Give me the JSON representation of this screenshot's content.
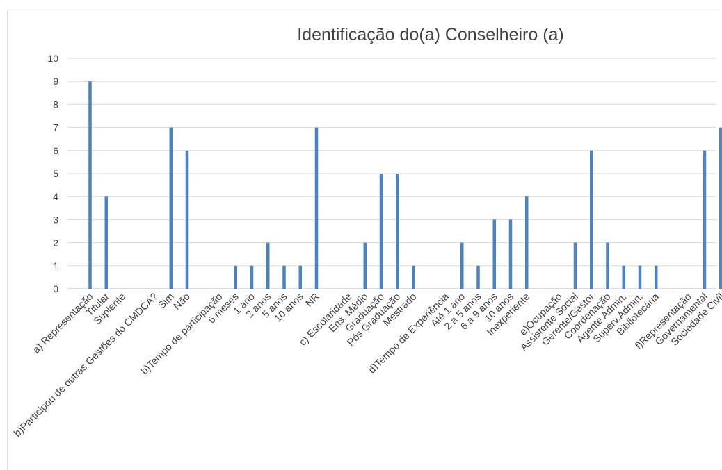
{
  "chart_data": {
    "type": "bar",
    "title": "Identificação do(a) Conselheiro (a)",
    "xlabel": "",
    "ylabel": "",
    "ylim": [
      0,
      10
    ],
    "yticks": [
      "0",
      "1",
      "2",
      "3",
      "4",
      "5",
      "6",
      "7",
      "8",
      "9",
      "10"
    ],
    "grid": true,
    "legend": "none",
    "bar_color": "#4f81bd",
    "categories": [
      "a) Representação",
      "Titular",
      "Suplente",
      "",
      "b)Participou de outras Gestões do CMDCA?",
      "Sim",
      "Não",
      "",
      "b)Tempo de participação",
      "6 meses",
      "1 ano",
      "2 anos",
      "5 anos",
      "10 anos",
      "NR",
      "",
      "c) Escolaridade",
      "Ens. Médio",
      "Graduação",
      "Pós Graduação",
      "Mestrado",
      "",
      "d)Tempo de Experiência",
      "Até 1 ano",
      "2 a 5 anos",
      "6 a 9 anos",
      "10 anos",
      "Inexperiente",
      "",
      "e)Ocupação",
      "Assistente Social",
      "Gerente/Gestor",
      "Coordenação",
      "Agente Admin.",
      "Superv.Admin.",
      "Bibliotecária",
      "",
      "f)Representação",
      "Governamental",
      "Sociedade Civil"
    ],
    "values": [
      9,
      4,
      0,
      0,
      0,
      7,
      6,
      0,
      0,
      1,
      1,
      2,
      1,
      1,
      7,
      0,
      0,
      2,
      5,
      5,
      1,
      0,
      0,
      2,
      1,
      3,
      3,
      4,
      0,
      0,
      2,
      6,
      2,
      1,
      1,
      1,
      0,
      0,
      6,
      7
    ]
  }
}
